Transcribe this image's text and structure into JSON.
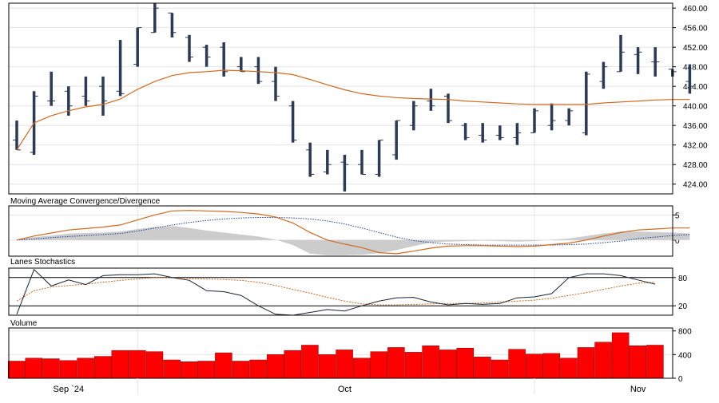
{
  "colors": {
    "background": "#ffffff",
    "frame": "#000000",
    "grid": "#e4e4e4",
    "ohlc_bar": "#2b3a55",
    "price_ma": "#d2691e",
    "macd_line": "#d2691e",
    "macd_signal": "#1f3f9f",
    "macd_histogram": "#cccccc",
    "stoch_k": "#1a2433",
    "stoch_d": "#d2691e",
    "volume_bar": "#ff0000",
    "volume_outline": "#8b0000"
  },
  "x_axis": {
    "labels": [
      {
        "text": "Sep `24",
        "index": 3
      },
      {
        "text": "Oct",
        "index": 19
      },
      {
        "text": "Nov",
        "index": 36
      }
    ],
    "separators": [
      7,
      30
    ]
  },
  "chart_data": [
    {
      "type": "ohlc",
      "title": "",
      "ylim": [
        422.0,
        461.0
      ],
      "y_ticks": [
        424.0,
        428.0,
        432.0,
        436.0,
        440.0,
        444.0,
        448.0,
        452.0,
        456.0,
        460.0
      ],
      "y_tick_labels": [
        "424.00",
        "428.00",
        "432.00",
        "436.00",
        "440.00",
        "444.00",
        "448.00",
        "452.00",
        "456.00",
        "460.00"
      ],
      "ohlc": [
        {
          "o": 433.0,
          "h": 437.0,
          "l": 431.0,
          "c": 431.0
        },
        {
          "o": 430.5,
          "h": 443.0,
          "l": 430.0,
          "c": 442.0
        },
        {
          "o": 441.0,
          "h": 447.0,
          "l": 440.0,
          "c": 441.0
        },
        {
          "o": 443.0,
          "h": 444.0,
          "l": 438.0,
          "c": 440.0
        },
        {
          "o": 442.0,
          "h": 446.0,
          "l": 440.0,
          "c": 441.0
        },
        {
          "o": 444.0,
          "h": 446.0,
          "l": 438.0,
          "c": 441.0
        },
        {
          "o": 443.0,
          "h": 453.5,
          "l": 442.0,
          "c": 442.5
        },
        {
          "o": 448.5,
          "h": 456.0,
          "l": 448.0,
          "c": 456.0
        },
        {
          "o": 455.0,
          "h": 461.0,
          "l": 455.0,
          "c": 460.0
        },
        {
          "o": 459.0,
          "h": 459.0,
          "l": 454.0,
          "c": 455.0
        },
        {
          "o": 454.0,
          "h": 454.5,
          "l": 449.0,
          "c": 450.0
        },
        {
          "o": 452.0,
          "h": 452.5,
          "l": 448.0,
          "c": 450.0
        },
        {
          "o": 452.0,
          "h": 453.0,
          "l": 446.0,
          "c": 447.0
        },
        {
          "o": 448.0,
          "h": 450.0,
          "l": 447.0,
          "c": 447.0
        },
        {
          "o": 448.0,
          "h": 450.0,
          "l": 444.5,
          "c": 445.0
        },
        {
          "o": 445.0,
          "h": 448.0,
          "l": 441.0,
          "c": 442.0
        },
        {
          "o": 440.0,
          "h": 441.0,
          "l": 432.5,
          "c": 433.0
        },
        {
          "o": 431.0,
          "h": 432.5,
          "l": 425.5,
          "c": 426.0
        },
        {
          "o": 426.5,
          "h": 431.0,
          "l": 426.0,
          "c": 428.0
        },
        {
          "o": 428.5,
          "h": 430.0,
          "l": 422.5,
          "c": 428.0
        },
        {
          "o": 428.0,
          "h": 431.0,
          "l": 426.0,
          "c": 426.0
        },
        {
          "o": 426.0,
          "h": 433.0,
          "l": 425.5,
          "c": 433.0
        },
        {
          "o": 430.0,
          "h": 437.0,
          "l": 429.0,
          "c": 437.0
        },
        {
          "o": 436.0,
          "h": 441.0,
          "l": 435.0,
          "c": 440.0
        },
        {
          "o": 441.0,
          "h": 443.5,
          "l": 439.0,
          "c": 440.0
        },
        {
          "o": 442.0,
          "h": 442.5,
          "l": 436.5,
          "c": 437.0
        },
        {
          "o": 436.0,
          "h": 436.5,
          "l": 433.0,
          "c": 433.5
        },
        {
          "o": 434.0,
          "h": 436.5,
          "l": 432.5,
          "c": 433.0
        },
        {
          "o": 434.0,
          "h": 436.0,
          "l": 433.0,
          "c": 433.5
        },
        {
          "o": 433.5,
          "h": 436.5,
          "l": 432.0,
          "c": 434.5
        },
        {
          "o": 434.5,
          "h": 439.5,
          "l": 434.5,
          "c": 439.0
        },
        {
          "o": 436.0,
          "h": 440.5,
          "l": 435.0,
          "c": 437.0
        },
        {
          "o": 437.0,
          "h": 439.5,
          "l": 436.0,
          "c": 439.0
        },
        {
          "o": 434.5,
          "h": 447.0,
          "l": 434.0,
          "c": 446.5
        },
        {
          "o": 445.0,
          "h": 449.0,
          "l": 443.5,
          "c": 448.0
        },
        {
          "o": 447.0,
          "h": 454.5,
          "l": 447.0,
          "c": 451.0
        },
        {
          "o": 450.5,
          "h": 452.0,
          "l": 446.5,
          "c": 451.0
        },
        {
          "o": 449.0,
          "h": 452.0,
          "l": 446.0,
          "c": 449.0
        },
        {
          "o": 447.5,
          "h": 447.5,
          "l": 446.0,
          "c": 447.0
        },
        {
          "o": 445.0,
          "h": 448.5,
          "l": 442.5,
          "c": 444.0
        }
      ],
      "moving_average": [
        431.0,
        436.5,
        438.0,
        439.0,
        439.8,
        440.3,
        441.4,
        443.4,
        445.0,
        446.2,
        446.8,
        447.0,
        447.3,
        447.2,
        447.0,
        446.8,
        446.4,
        445.4,
        444.3,
        443.3,
        442.5,
        442.0,
        441.7,
        441.5,
        441.4,
        441.3,
        441.0,
        440.8,
        440.6,
        440.4,
        440.3,
        440.3,
        440.3,
        440.3,
        440.6,
        440.8,
        441.0,
        441.2,
        441.3,
        441.3
      ]
    },
    {
      "type": "line",
      "title": "Moving Average Convergence/Divergence",
      "ylim": [
        -3.2,
        6.8
      ],
      "y_ticks": [
        5,
        0
      ],
      "y_tick_labels": [
        "5",
        "0"
      ],
      "series": [
        {
          "values": [
            0.0,
            0.8,
            1.4,
            2.0,
            2.3,
            2.6,
            3.0,
            4.0,
            5.0,
            5.8,
            5.9,
            5.8,
            5.7,
            5.5,
            5.2,
            4.6,
            3.4,
            1.5,
            0.0,
            -0.8,
            -1.5,
            -2.5,
            -2.7,
            -2.2,
            -1.6,
            -1.2,
            -1.1,
            -1.1,
            -1.2,
            -1.3,
            -1.2,
            -0.9,
            -0.6,
            0.0,
            0.8,
            1.5,
            2.0,
            2.2,
            2.4,
            2.4
          ]
        },
        {
          "values": [
            0.0,
            0.2,
            0.5,
            0.7,
            0.9,
            1.1,
            1.3,
            1.8,
            2.4,
            3.0,
            3.5,
            3.9,
            4.2,
            4.4,
            4.5,
            4.5,
            4.4,
            4.2,
            3.8,
            3.2,
            2.4,
            1.5,
            0.6,
            -0.1,
            -0.5,
            -0.8,
            -0.9,
            -1.0,
            -1.0,
            -1.0,
            -1.0,
            -1.0,
            -0.9,
            -0.8,
            -0.5,
            -0.2,
            0.3,
            0.6,
            0.9,
            1.1
          ]
        }
      ],
      "histogram": [
        0.0,
        0.6,
        0.9,
        1.3,
        1.4,
        1.5,
        1.7,
        2.2,
        2.6,
        2.8,
        2.4,
        1.9,
        1.5,
        1.1,
        0.7,
        0.1,
        -1.0,
        -2.7,
        -3.0,
        -3.0,
        -2.9,
        -2.6,
        -2.0,
        -1.2,
        -0.5,
        -0.3,
        -0.2,
        -0.1,
        -0.2,
        -0.3,
        -0.2,
        0.1,
        0.3,
        0.8,
        1.3,
        1.7,
        1.7,
        1.6,
        1.5,
        1.3
      ]
    },
    {
      "type": "line",
      "title": "Lanes Stochastics",
      "ylim": [
        0,
        100
      ],
      "y_ticks": [
        80,
        20
      ],
      "y_tick_labels": [
        "80",
        "20"
      ],
      "series": [
        {
          "values": [
            2,
            97,
            62,
            75,
            65,
            84,
            86,
            86,
            88,
            80,
            74,
            52,
            50,
            42,
            20,
            2,
            0,
            6,
            12,
            9,
            20,
            30,
            37,
            38,
            28,
            22,
            25,
            23,
            25,
            37,
            39,
            46,
            80,
            88,
            88,
            84,
            75,
            66
          ]
        },
        {
          "values": [
            30,
            52,
            60,
            63,
            66,
            70,
            74,
            77,
            80,
            80,
            78,
            77,
            76,
            74,
            70,
            63,
            55,
            47,
            38,
            30,
            24,
            22,
            22,
            23,
            24,
            25,
            25,
            26,
            28,
            30,
            32,
            36,
            42,
            48,
            55,
            62,
            68,
            70
          ]
        }
      ]
    },
    {
      "type": "bar",
      "title": "Volume",
      "ylim": [
        0,
        850
      ],
      "y_ticks": [
        800,
        400,
        0
      ],
      "y_tick_labels": [
        "800",
        "400",
        "0"
      ],
      "values": [
        290,
        340,
        330,
        300,
        340,
        370,
        470,
        470,
        450,
        310,
        280,
        290,
        430,
        290,
        310,
        400,
        470,
        560,
        400,
        480,
        340,
        450,
        520,
        440,
        550,
        480,
        510,
        360,
        310,
        490,
        410,
        420,
        340,
        520,
        610,
        770,
        550,
        560
      ]
    }
  ]
}
